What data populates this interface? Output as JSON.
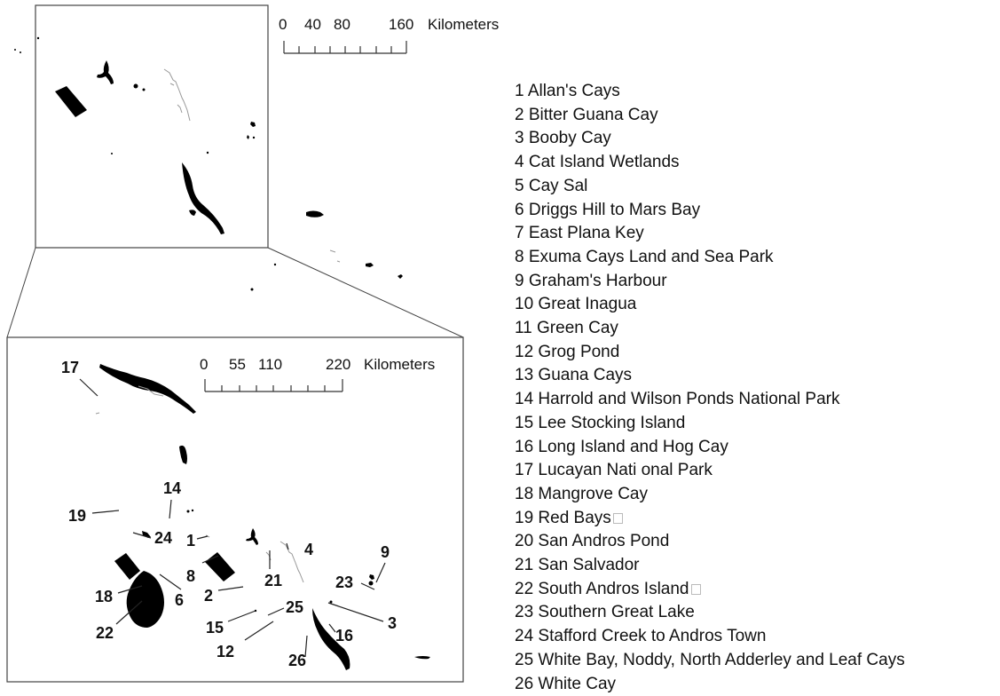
{
  "top_scale": {
    "ticks": [
      "0",
      "40",
      "80",
      "160"
    ],
    "unit": "Kilometers"
  },
  "bottom_scale": {
    "ticks": [
      "0",
      "55",
      "110",
      "220"
    ],
    "unit": "Kilometers"
  },
  "legend": [
    {
      "num": "1",
      "name": "Allan's Cays"
    },
    {
      "num": "2",
      "name": "Bitter Guana Cay"
    },
    {
      "num": "3",
      "name": "Booby Cay"
    },
    {
      "num": "4",
      "name": "Cat Island Wetlands"
    },
    {
      "num": "5",
      "name": "Cay Sal"
    },
    {
      "num": "6",
      "name": "Driggs Hill to Mars Bay"
    },
    {
      "num": "7",
      "name": "East Plana Key"
    },
    {
      "num": "8",
      "name": "Exuma Cays Land and Sea Park"
    },
    {
      "num": "9",
      "name": "Graham's Harbour"
    },
    {
      "num": "10",
      "name": "Great Inagua"
    },
    {
      "num": "11",
      "name": "Green Cay"
    },
    {
      "num": "12",
      "name": "Grog Pond"
    },
    {
      "num": "13",
      "name": "Guana Cays"
    },
    {
      "num": "14",
      "name": "Harrold and Wilson Ponds National Park"
    },
    {
      "num": "15",
      "name": "Lee Stocking Island"
    },
    {
      "num": "16",
      "name": "Long Island and Hog Cay"
    },
    {
      "num": "17",
      "name": "Lucayan Nati onal Park"
    },
    {
      "num": "18",
      "name": "Mangrove Cay"
    },
    {
      "num": "19",
      "name": "Red Bays",
      "box": true
    },
    {
      "num": "20",
      "name": "San Andros Pond"
    },
    {
      "num": "21",
      "name": "San Salvador"
    },
    {
      "num": "22",
      "name": "South Andros Island",
      "box": true
    },
    {
      "num": "23",
      "name": "Southern Great Lake"
    },
    {
      "num": "24",
      "name": "Stafford Creek to Andros Town"
    },
    {
      "num": "25",
      "name": "White Bay, Noddy, North Adderley and Leaf Cays"
    },
    {
      "num": "26",
      "name": "White Cay"
    }
  ],
  "map_labels": [
    "17",
    "14",
    "19",
    "24",
    "1",
    "8",
    "4",
    "9",
    "21",
    "23",
    "18",
    "2",
    "6",
    "22",
    "25",
    "3",
    "15",
    "16",
    "12",
    "26"
  ],
  "colors": {
    "land": "#000000",
    "frame": "#444444",
    "background": "#ffffff"
  }
}
